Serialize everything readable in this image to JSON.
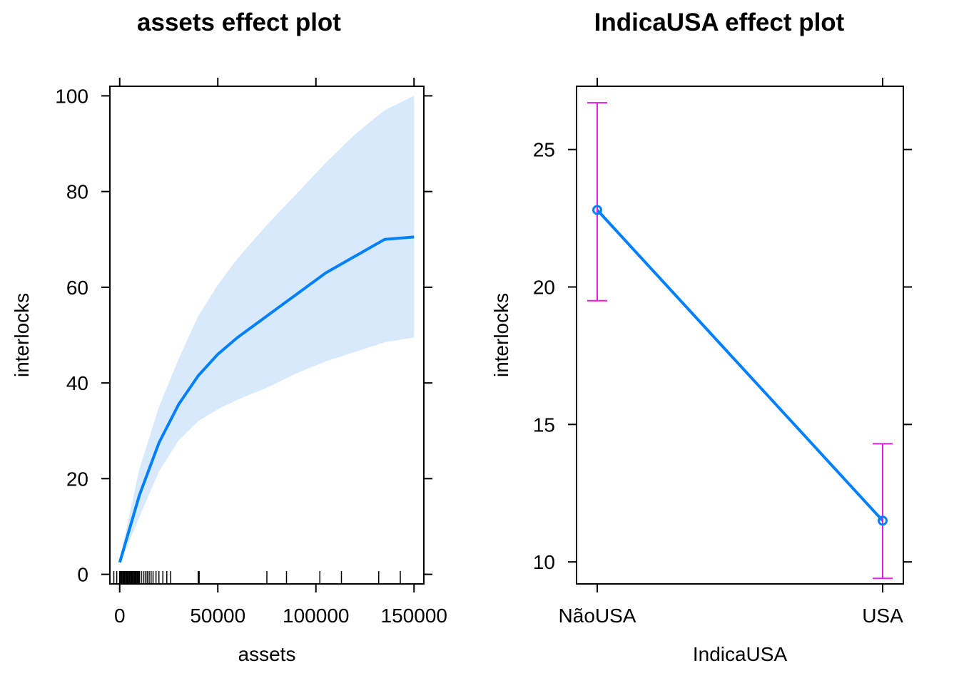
{
  "chart_data": [
    {
      "type": "line",
      "title": "assets effect plot",
      "xlabel": "assets",
      "ylabel": "interlocks",
      "xlim": [
        -5000,
        155000
      ],
      "ylim": [
        -2,
        102
      ],
      "x_ticks": [
        0,
        50000,
        100000,
        150000
      ],
      "y_ticks": [
        0,
        20,
        40,
        60,
        80,
        100
      ],
      "x_tick_labels": [
        "0",
        "50000",
        "100000",
        "150000"
      ],
      "y_tick_labels": [
        "0",
        "20",
        "40",
        "60",
        "80",
        "100"
      ],
      "colors": {
        "fit": "#0080ff",
        "band": "#d7e9fb"
      },
      "series": [
        {
          "x": [
            0,
            10000,
            20000,
            30000,
            40000,
            50000,
            60000,
            75000,
            90000,
            105000,
            120000,
            135000,
            150000
          ],
          "fit": [
            2.5,
            16.5,
            27.5,
            35.5,
            41.5,
            46.0,
            49.5,
            54.0,
            58.5,
            63.0,
            66.5,
            70.0,
            70.5
          ],
          "lower": [
            2.0,
            12.0,
            21.5,
            28.0,
            32.0,
            34.5,
            36.5,
            39.0,
            42.0,
            44.5,
            46.5,
            48.5,
            49.5
          ],
          "upper": [
            3.0,
            22.0,
            35.0,
            45.0,
            54.0,
            60.5,
            66.0,
            73.0,
            79.5,
            86.0,
            92.0,
            97.0,
            100.0
          ]
        }
      ],
      "rug": [
        -3000,
        -1500,
        0,
        500,
        1000,
        1500,
        2000,
        2500,
        3000,
        3500,
        4000,
        4500,
        5000,
        5500,
        6000,
        6500,
        7000,
        7500,
        8000,
        8500,
        9000,
        9500,
        10000,
        11000,
        12000,
        13000,
        14000,
        15000,
        16000,
        17000,
        18500,
        20000,
        22000,
        24000,
        26000,
        40000,
        40500,
        75000,
        85000,
        102000,
        113000,
        132000,
        143000
      ]
    },
    {
      "type": "line",
      "title": "IndicaUSA effect plot",
      "xlabel": "IndicaUSA",
      "ylabel": "interlocks",
      "categories": [
        "NãoUSA",
        "USA"
      ],
      "ylim": [
        9.2,
        27.3
      ],
      "y_ticks": [
        10,
        15,
        20,
        25
      ],
      "y_tick_labels": [
        "10",
        "15",
        "20",
        "25"
      ],
      "colors": {
        "fit": "#0080ff",
        "errorbar": "#e81ae8"
      },
      "series": [
        {
          "values": [
            22.8,
            11.5
          ],
          "lower": [
            19.5,
            9.4
          ],
          "upper": [
            26.7,
            14.3
          ]
        }
      ]
    }
  ]
}
